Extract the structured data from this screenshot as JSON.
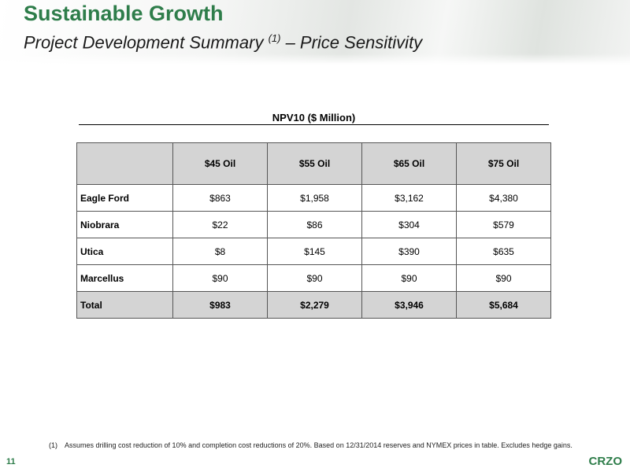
{
  "header": {
    "title": "Sustainable Growth",
    "subtitle_before": "Project Development Summary ",
    "subtitle_sup": "(1)",
    "subtitle_after": " – Price Sensitivity"
  },
  "table": {
    "heading": "NPV10 ($ Million)",
    "columns": [
      "",
      "$45 Oil",
      "$55 Oil",
      "$65 Oil",
      "$75 Oil"
    ],
    "rows": [
      {
        "label": "Eagle Ford",
        "values": [
          "$863",
          "$1,958",
          "$3,162",
          "$4,380"
        ]
      },
      {
        "label": "Niobrara",
        "values": [
          "$22",
          "$86",
          "$304",
          "$579"
        ]
      },
      {
        "label": "Utica",
        "values": [
          "$8",
          "$145",
          "$390",
          "$635"
        ]
      },
      {
        "label": "Marcellus",
        "values": [
          "$90",
          "$90",
          "$90",
          "$90"
        ]
      }
    ],
    "total": {
      "label": "Total",
      "values": [
        "$983",
        "$2,279",
        "$3,946",
        "$5,684"
      ]
    }
  },
  "footnote": {
    "number": "(1)",
    "text": "Assumes drilling cost reduction of 10% and completion cost reductions of 20%.  Based on 12/31/2014 reserves and NYMEX prices in table. Excludes hedge gains."
  },
  "footer": {
    "page_number": "11",
    "logo": "CRZO"
  },
  "colors": {
    "brand_green": "#2e7d4a",
    "table_header_fill": "#d4d4d4"
  }
}
